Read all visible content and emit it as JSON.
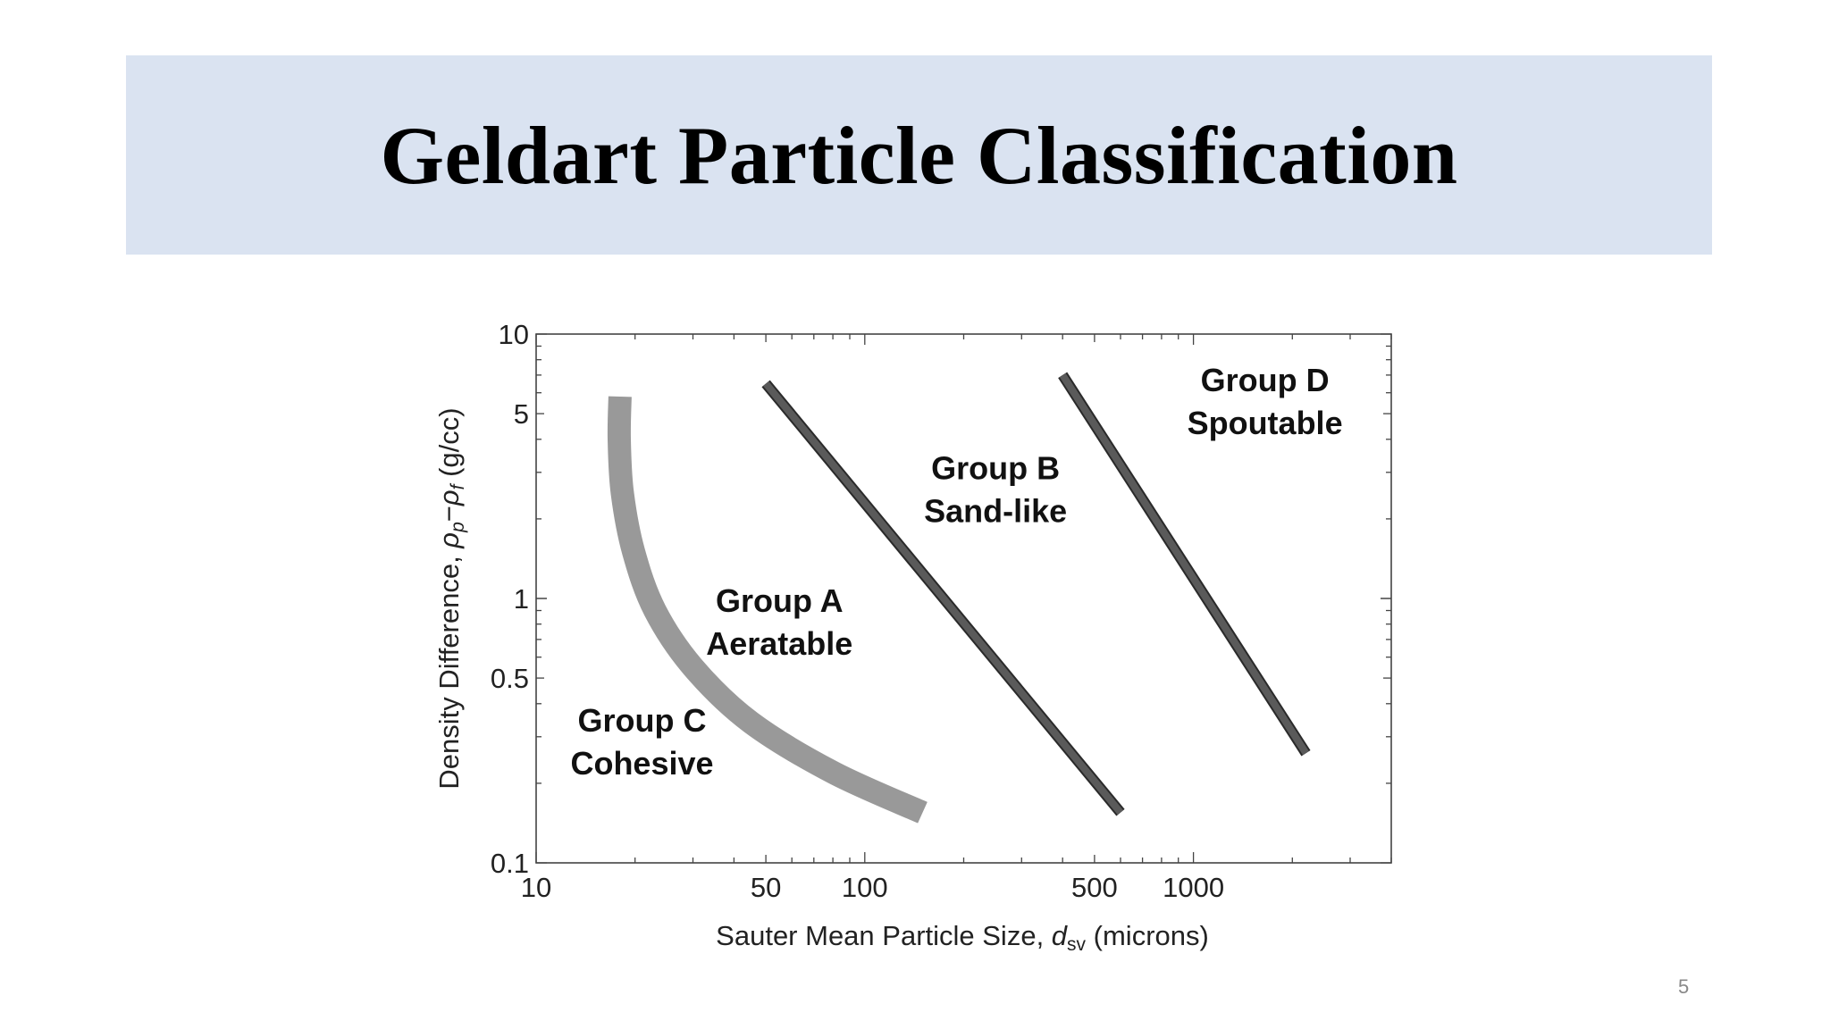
{
  "slide": {
    "title": "Geldart Particle Classification",
    "page_number": "5"
  },
  "chart_data": {
    "type": "line",
    "title": "",
    "xlabel": "Sauter Mean Particle Size, d_sv (microns)",
    "xlabel_main": "Sauter Mean Particle Size, ",
    "xlabel_symbol": "d",
    "xlabel_sub": "sv",
    "xlabel_unit": " (microns)",
    "ylabel": "Density Difference, ρp−ρf (g/cc)",
    "ylabel_main": "Density Difference, ",
    "ylabel_rho1": "ρ",
    "ylabel_sub1": "p",
    "ylabel_minus": "−",
    "ylabel_rho2": "ρ",
    "ylabel_sub2": "f",
    "ylabel_unit": " (g/cc)",
    "x_scale": "log",
    "y_scale": "log",
    "xlim": [
      10,
      4000
    ],
    "ylim": [
      0.1,
      10
    ],
    "x_ticks": [
      {
        "value": 10,
        "label": "10"
      },
      {
        "value": 50,
        "label": "50"
      },
      {
        "value": 100,
        "label": "100"
      },
      {
        "value": 500,
        "label": "500"
      },
      {
        "value": 1000,
        "label": "1000"
      }
    ],
    "y_ticks": [
      {
        "value": 0.1,
        "label": "0.1"
      },
      {
        "value": 0.5,
        "label": "0.5"
      },
      {
        "value": 1,
        "label": "1"
      },
      {
        "value": 5,
        "label": "5"
      },
      {
        "value": 10,
        "label": "10"
      }
    ],
    "grid": false,
    "boundaries": [
      {
        "id": "c-a",
        "style": "thick-light",
        "color": "#999999",
        "points": [
          [
            18,
            5.8
          ],
          [
            17.9,
            4
          ],
          [
            18.3,
            2.5
          ],
          [
            19.8,
            1.5
          ],
          [
            23,
            0.9
          ],
          [
            30,
            0.55
          ],
          [
            45,
            0.34
          ],
          [
            80,
            0.22
          ],
          [
            150,
            0.155
          ]
        ]
      },
      {
        "id": "a-b",
        "style": "medium-dark",
        "color": "#5a5a5a",
        "points": [
          [
            50,
            6.5
          ],
          [
            600,
            0.155
          ]
        ]
      },
      {
        "id": "b-d",
        "style": "medium-dark",
        "color": "#5a5a5a",
        "points": [
          [
            400,
            7
          ],
          [
            2200,
            0.26
          ]
        ]
      }
    ],
    "annotations": [
      {
        "line1": "Group C",
        "line2": "Cohesive",
        "x": 21,
        "y": 0.3
      },
      {
        "line1": "Group A",
        "line2": "Aeratable",
        "x": 55,
        "y": 0.85
      },
      {
        "line1": "Group B",
        "line2": "Sand-like",
        "x": 250,
        "y": 2.7
      },
      {
        "line1": "Group D",
        "line2": "Spoutable",
        "x": 1650,
        "y": 5.8
      }
    ]
  }
}
